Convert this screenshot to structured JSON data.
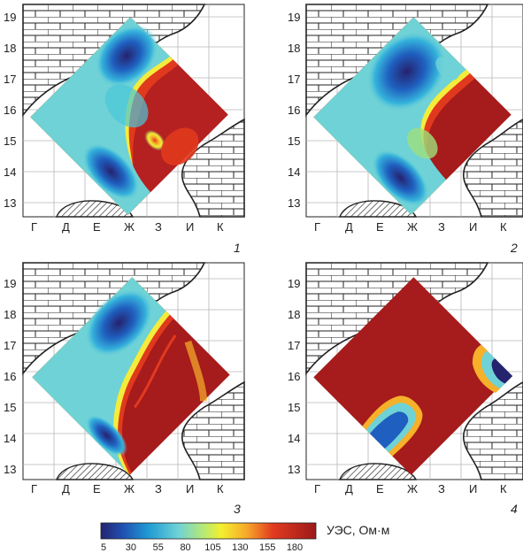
{
  "grid": {
    "row_labels": [
      "19",
      "18",
      "17",
      "16",
      "15",
      "14",
      "13"
    ],
    "column_labels": [
      "Г",
      "Д",
      "Е",
      "Ж",
      "З",
      "И",
      "К"
    ]
  },
  "panels": [
    {
      "number": "1"
    },
    {
      "number": "2"
    },
    {
      "number": "3"
    },
    {
      "number": "4"
    }
  ],
  "colorbar": {
    "title": "УЭС, Ом·м",
    "ticks": [
      "5",
      "30",
      "55",
      "80",
      "105",
      "130",
      "155",
      "180"
    ],
    "colors": [
      "#2a2a8c",
      "#1e6fc0",
      "#27b7d6",
      "#7fd6c5",
      "#f6ef3a",
      "#f7b12b",
      "#e0391d",
      "#a61b1b"
    ]
  },
  "colors": {
    "line": "#222222",
    "grid": "#b8b8b8",
    "low": "#2a2a8c",
    "mid": "#5fd0e0",
    "high": "#a61b1b"
  }
}
